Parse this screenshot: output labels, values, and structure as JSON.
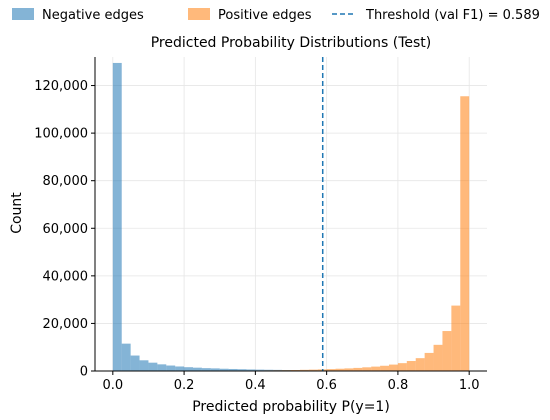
{
  "chart_data": {
    "type": "bar",
    "title": "Predicted Probability Distributions (Test)",
    "xlabel": "Predicted probability P(y=1)",
    "ylabel": "Count",
    "xlim": [
      -0.05,
      1.05
    ],
    "ylim": [
      0,
      132000
    ],
    "x_ticks": [
      0.0,
      0.2,
      0.4,
      0.6,
      0.8,
      1.0
    ],
    "x_tick_labels": [
      "0.0",
      "0.2",
      "0.4",
      "0.6",
      "0.8",
      "1.0"
    ],
    "y_ticks": [
      0,
      20000,
      40000,
      60000,
      80000,
      100000,
      120000
    ],
    "y_tick_labels": [
      "0",
      "20,000",
      "40,000",
      "60,000",
      "80,000",
      "100,000",
      "120,000"
    ],
    "grid": true,
    "legend_position": "top",
    "bin_width": 0.025,
    "bin_edges_start": 0.0,
    "series": [
      {
        "name": "Negative edges",
        "color": "#1f77b4",
        "opacity": 0.55,
        "values": [
          129500,
          11500,
          6500,
          4500,
          3500,
          2800,
          2300,
          1900,
          1600,
          1400,
          1200,
          1100,
          950,
          850,
          750,
          650,
          580,
          520,
          470,
          420,
          380,
          340,
          300,
          270,
          240,
          210,
          180,
          150,
          130,
          110,
          95,
          80,
          70,
          60,
          50,
          40,
          30,
          20,
          15,
          10
        ]
      },
      {
        "name": "Positive edges",
        "color": "#ff7f0e",
        "opacity": 0.55,
        "values": [
          10,
          15,
          20,
          25,
          30,
          40,
          50,
          60,
          70,
          80,
          90,
          110,
          130,
          150,
          170,
          200,
          230,
          270,
          310,
          360,
          420,
          500,
          580,
          680,
          800,
          950,
          1100,
          1300,
          1550,
          1850,
          2200,
          2700,
          3300,
          4200,
          5400,
          7600,
          11000,
          16800,
          27500,
          115500
        ]
      }
    ],
    "threshold": {
      "name": "Threshold (val F1) = 0.589",
      "value": 0.589,
      "color": "#1f77b4",
      "style": "dashed"
    }
  }
}
